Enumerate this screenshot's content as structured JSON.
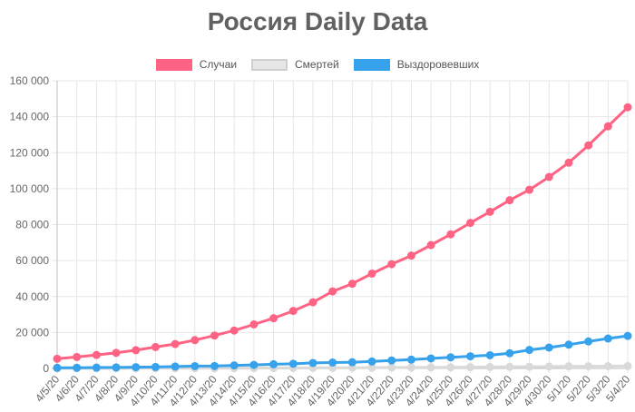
{
  "chart_data": {
    "type": "line",
    "title": "Россия Daily Data",
    "x": [
      "4/5/20",
      "4/6/20",
      "4/7/20",
      "4/8/20",
      "4/9/20",
      "4/10/20",
      "4/11/20",
      "4/12/20",
      "4/13/20",
      "4/14/20",
      "4/15/20",
      "4/16/20",
      "4/17/20",
      "4/18/20",
      "4/19/20",
      "4/20/20",
      "4/21/20",
      "4/22/20",
      "4/23/20",
      "4/24/20",
      "4/25/20",
      "4/26/20",
      "4/27/20",
      "4/28/20",
      "4/29/20",
      "4/30/20",
      "5/1/20",
      "5/2/20",
      "5/3/20",
      "5/4/20"
    ],
    "series": [
      {
        "name": "Случаи",
        "color": "#ff6384",
        "values": [
          5389,
          6343,
          7497,
          8672,
          10131,
          11917,
          13584,
          15770,
          18328,
          21102,
          24490,
          27938,
          32008,
          36793,
          42853,
          47121,
          52763,
          57999,
          62773,
          68622,
          74588,
          80949,
          87147,
          93558,
          99399,
          106498,
          114431,
          124054,
          134686,
          145268
        ]
      },
      {
        "name": "Смертей",
        "color": "#e0e0e0",
        "values": [
          45,
          47,
          58,
          63,
          76,
          94,
          106,
          130,
          148,
          170,
          198,
          232,
          273,
          313,
          361,
          405,
          456,
          513,
          555,
          615,
          681,
          747,
          794,
          867,
          972,
          1073,
          1169,
          1222,
          1280,
          1356
        ]
      },
      {
        "name": "Выздоровевших",
        "color": "#36a2eb",
        "values": [
          355,
          406,
          494,
          580,
          698,
          795,
          1045,
          1291,
          1355,
          1694,
          1986,
          2304,
          2590,
          3057,
          3291,
          3446,
          3873,
          4420,
          4891,
          5568,
          6213,
          6767,
          7346,
          8456,
          10286,
          11619,
          13220,
          15013,
          16639,
          18095
        ]
      }
    ],
    "ylim": [
      0,
      160000
    ],
    "yticks": [
      "0",
      "20 000",
      "40 000",
      "60 000",
      "80 000",
      "100 000",
      "120 000",
      "140 000",
      "160 000"
    ],
    "grid": true,
    "legend": "top"
  }
}
